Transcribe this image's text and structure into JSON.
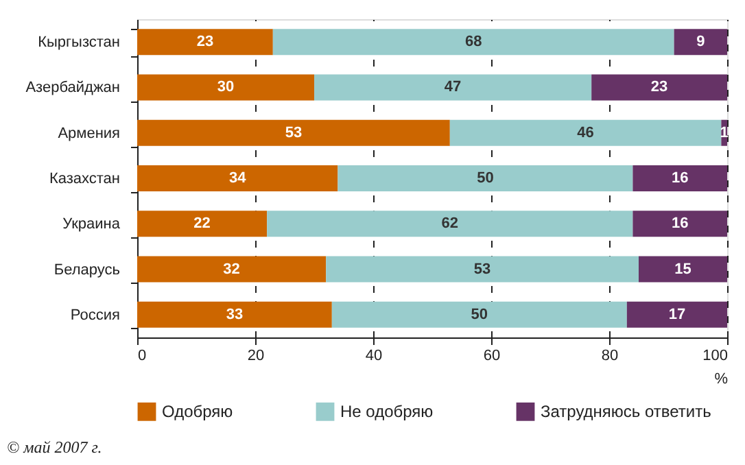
{
  "chart_data": {
    "type": "bar",
    "orientation": "horizontal",
    "stacked": true,
    "categories": [
      "Кыргызстан",
      "Азербайджан",
      "Армения",
      "Казахстан",
      "Украина",
      "Беларусь",
      "Россия"
    ],
    "series": [
      {
        "name": "Одобряю",
        "color": "#cc6600",
        "values": [
          23,
          30,
          53,
          34,
          22,
          32,
          33
        ]
      },
      {
        "name": "Не одобряю",
        "color": "#99cccc",
        "values": [
          68,
          47,
          46,
          50,
          62,
          53,
          50
        ]
      },
      {
        "name": "Затрудняюсь ответить",
        "color": "#663366",
        "values": [
          9,
          23,
          1,
          16,
          16,
          15,
          17
        ]
      }
    ],
    "xlim": [
      0,
      100
    ],
    "xticks": [
      0,
      20,
      40,
      60,
      80,
      100
    ],
    "xlabel": "%",
    "grid": "x",
    "legend": "bottom",
    "data_labels": true,
    "annotations": [
      "© май 2007 г."
    ]
  }
}
